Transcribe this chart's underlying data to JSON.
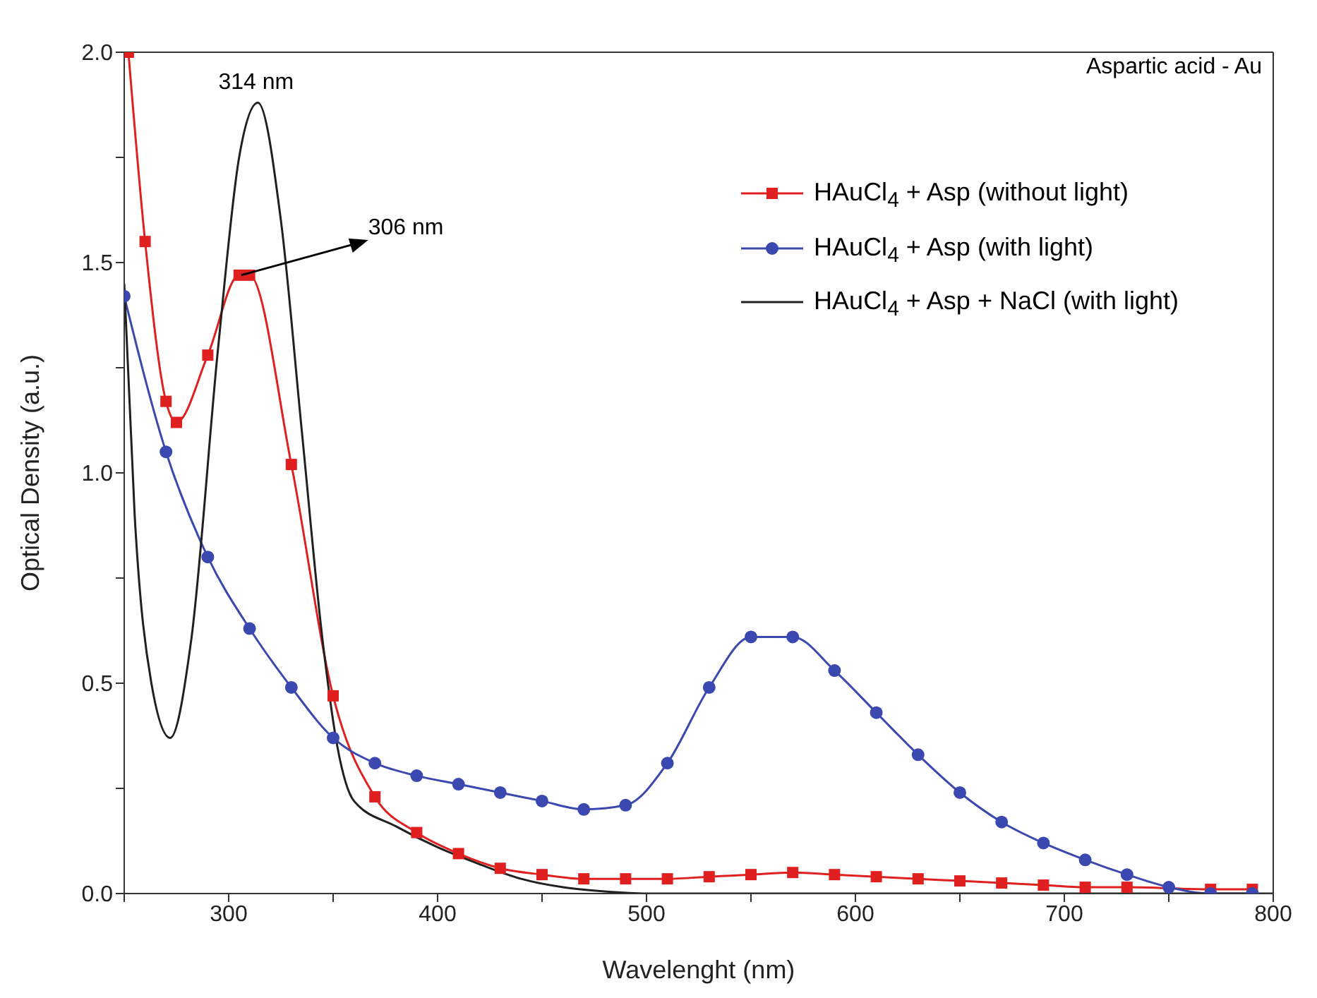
{
  "chart_data": {
    "type": "line",
    "xlabel": "Wavelenght (nm)",
    "ylabel": "Optical Density (a.u.)",
    "xlim": [
      250,
      800
    ],
    "xticks": [
      {
        "value": 250,
        "label": null
      },
      300,
      {
        "value": 350,
        "label": null
      },
      400,
      {
        "value": 450,
        "label": null
      },
      500,
      {
        "value": 550,
        "label": null
      },
      600,
      {
        "value": 650,
        "label": null
      },
      700,
      {
        "value": 750,
        "label": null
      },
      800
    ],
    "ylim": [
      0,
      2.0
    ],
    "yticks": [
      {
        "value": 0,
        "label": "0.0"
      },
      {
        "value": 0.25,
        "label": null
      },
      {
        "value": 0.5,
        "label": "0.5"
      },
      {
        "value": 0.75,
        "label": null
      },
      {
        "value": 1.0,
        "label": "1.0"
      },
      {
        "value": 1.25,
        "label": null
      },
      {
        "value": 1.5,
        "label": "1.5"
      },
      {
        "value": 1.75,
        "label": null
      },
      {
        "value": 2.0,
        "label": "2.0"
      }
    ],
    "legend": "top right",
    "line_style": "solid",
    "annotations": [
      "Aspartic acid - Au",
      {
        "text": "314 nm",
        "x": 314,
        "y": 1.88
      },
      {
        "text": "306 nm",
        "x": 306,
        "y": 1.47
      }
    ],
    "series": [
      {
        "name": "HAuCl$_{4}$ + Asp (without light)",
        "color": "#e02020",
        "marker": "square",
        "x": [
          252,
          260,
          270,
          275,
          290,
          305,
          310,
          330,
          350,
          370,
          390,
          410,
          430,
          450,
          470,
          490,
          510,
          530,
          550,
          570,
          590,
          610,
          630,
          650,
          670,
          690,
          710,
          730,
          750,
          770,
          790
        ],
        "values": [
          2.0,
          1.55,
          1.17,
          1.12,
          1.28,
          1.47,
          1.47,
          1.02,
          0.47,
          0.23,
          0.145,
          0.095,
          0.06,
          0.045,
          0.035,
          0.035,
          0.035,
          0.04,
          0.045,
          0.05,
          0.045,
          0.04,
          0.035,
          0.03,
          0.025,
          0.02,
          0.015,
          0.015,
          null,
          0.01,
          0.01
        ]
      },
      {
        "name": "HAuCl$_{4}$ + Asp (with light)",
        "color": "#3a48b0",
        "marker": "circle",
        "x": [
          250,
          270,
          290,
          310,
          330,
          350,
          370,
          390,
          410,
          430,
          450,
          470,
          490,
          510,
          530,
          550,
          570,
          590,
          610,
          630,
          650,
          670,
          690,
          710,
          730,
          750,
          770,
          790
        ],
        "values": [
          1.42,
          1.05,
          0.8,
          0.63,
          0.49,
          0.37,
          0.31,
          0.28,
          0.26,
          0.24,
          0.22,
          0.2,
          0.21,
          0.31,
          0.49,
          0.61,
          0.61,
          0.53,
          0.43,
          0.33,
          0.24,
          0.17,
          0.12,
          0.08,
          0.045,
          0.015,
          0.0,
          0.0
        ]
      },
      {
        "name": "HAuCl$_{4}$ + Asp + NaCl (with light)",
        "color": "#202020",
        "marker": "none",
        "x": [
          250,
          255,
          263,
          272,
          282,
          295,
          305,
          314,
          325,
          335,
          345,
          352,
          360,
          380,
          400,
          420,
          440,
          460,
          480,
          500,
          600,
          700,
          800
        ],
        "values": [
          1.45,
          0.9,
          0.5,
          0.37,
          0.6,
          1.3,
          1.75,
          1.88,
          1.6,
          1.1,
          0.6,
          0.35,
          0.22,
          0.16,
          0.11,
          0.07,
          0.035,
          0.015,
          0.005,
          0.0,
          0.0,
          0.0,
          0.0
        ]
      }
    ]
  }
}
